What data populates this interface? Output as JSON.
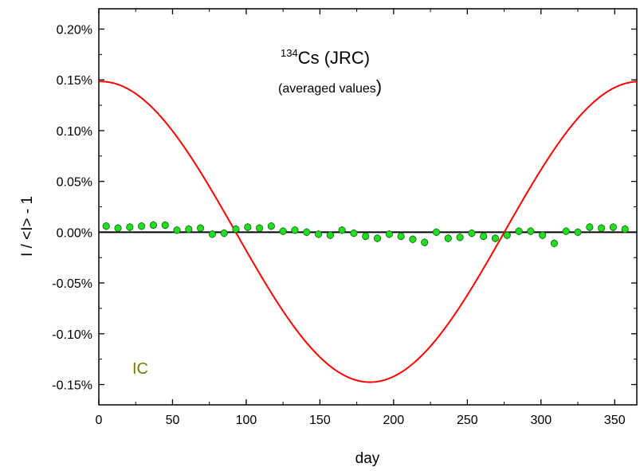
{
  "chart_data": {
    "type": "scatter",
    "title_superscript": "134",
    "title_main": "Cs (JRC)",
    "subtitle_open": "(averaged values",
    "subtitle_close": ")",
    "xlabel": "day",
    "ylabel": "I / <I> - 1",
    "xlim": [
      0,
      365
    ],
    "ylim": [
      -0.0017,
      0.0022
    ],
    "x_ticks": [
      0,
      50,
      100,
      150,
      200,
      250,
      300,
      350
    ],
    "x_tick_labels": [
      "0",
      "50",
      "100",
      "150",
      "200",
      "250",
      "300",
      "350"
    ],
    "y_ticks": [
      -0.0015,
      -0.001,
      -0.0005,
      0,
      0.0005,
      0.001,
      0.0015,
      0.002
    ],
    "y_tick_labels": [
      "-0.15%",
      "-0.10%",
      "-0.05%",
      "0.00%",
      "0.05%",
      "0.10%",
      "0.15%",
      "0.20%"
    ],
    "zero_line": true,
    "annotation": "IC",
    "annotation_color": "#7a7a00",
    "curve": {
      "name": "",
      "color": "#ff0000",
      "amplitude": 0.00148,
      "offset": 3.5e-06,
      "min_day": 184
    },
    "points": {
      "name": "",
      "color": "#22dd22",
      "x": [
        5,
        13,
        21,
        29,
        37,
        45,
        53,
        61,
        69,
        77,
        85,
        93,
        101,
        109,
        117,
        125,
        133,
        141,
        149,
        157,
        165,
        173,
        181,
        189,
        197,
        205,
        213,
        221,
        229,
        237,
        245,
        253,
        261,
        269,
        277,
        285,
        293,
        301,
        309,
        317,
        325,
        333,
        341,
        349,
        357
      ],
      "y": [
        6e-05,
        4e-05,
        5e-05,
        6e-05,
        7e-05,
        7e-05,
        2e-05,
        3e-05,
        4e-05,
        -2e-05,
        -1e-05,
        3e-05,
        5e-05,
        4e-05,
        6e-05,
        1e-05,
        2e-05,
        0.0,
        -2e-05,
        -3e-05,
        2e-05,
        -1e-05,
        -4e-05,
        -6e-05,
        -2e-05,
        -4e-05,
        -7e-05,
        -0.0001,
        0.0,
        -6e-05,
        -5e-05,
        -1e-05,
        -4e-05,
        -6e-05,
        -3e-05,
        1e-05,
        1e-05,
        -3e-05,
        -0.00011,
        1e-05,
        0.0,
        5e-05,
        4e-05,
        5e-05,
        3e-05
      ],
      "y_error": 1.5e-05
    }
  }
}
